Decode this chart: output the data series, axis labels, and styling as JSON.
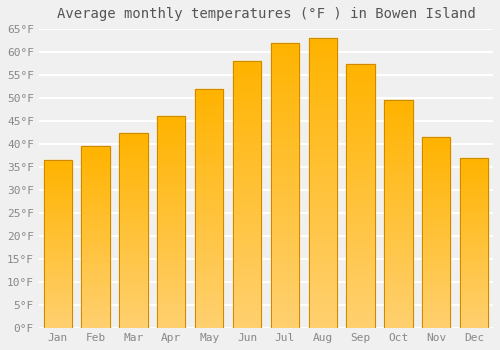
{
  "title": "Average monthly temperatures (°F ) in Bowen Island",
  "months": [
    "Jan",
    "Feb",
    "Mar",
    "Apr",
    "May",
    "Jun",
    "Jul",
    "Aug",
    "Sep",
    "Oct",
    "Nov",
    "Dec"
  ],
  "values": [
    36.5,
    39.5,
    42.5,
    46.0,
    52.0,
    58.0,
    62.0,
    63.0,
    57.5,
    49.5,
    41.5,
    37.0
  ],
  "bar_color_top": "#FFB700",
  "bar_color_bottom": "#FFD870",
  "bar_edge_color": "#CC8800",
  "background_color": "#F0F0F0",
  "grid_color": "#FFFFFF",
  "text_color": "#888888",
  "title_color": "#555555",
  "ylim": [
    0,
    65
  ],
  "yticks": [
    0,
    5,
    10,
    15,
    20,
    25,
    30,
    35,
    40,
    45,
    50,
    55,
    60,
    65
  ],
  "title_fontsize": 10,
  "tick_fontsize": 8,
  "bar_width": 0.75
}
